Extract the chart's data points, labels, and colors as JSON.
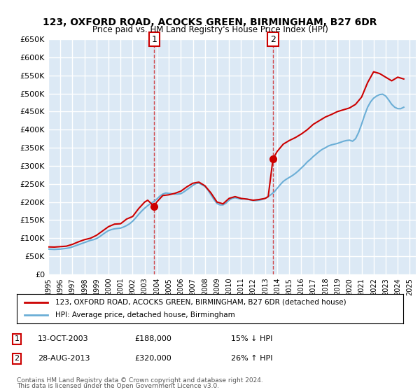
{
  "title": "123, OXFORD ROAD, ACOCKS GREEN, BIRMINGHAM, B27 6DR",
  "subtitle": "Price paid vs. HM Land Registry's House Price Index (HPI)",
  "ylabel_ticks": [
    "£0",
    "£50K",
    "£100K",
    "£150K",
    "£200K",
    "£250K",
    "£300K",
    "£350K",
    "£400K",
    "£450K",
    "£500K",
    "£550K",
    "£600K",
    "£650K"
  ],
  "ylim": [
    0,
    650000
  ],
  "xlim_start": 1995.0,
  "xlim_end": 2025.5,
  "background_color": "#ffffff",
  "plot_bg_color": "#dce9f5",
  "grid_color": "#ffffff",
  "sale1_x": 2003.79,
  "sale1_y": 188000,
  "sale2_x": 2013.65,
  "sale2_y": 320000,
  "sale_color": "#cc0000",
  "hpi_color": "#6baed6",
  "legend_label_red": "123, OXFORD ROAD, ACOCKS GREEN, BIRMINGHAM, B27 6DR (detached house)",
  "legend_label_blue": "HPI: Average price, detached house, Birmingham",
  "annotation1_label": "1",
  "annotation2_label": "2",
  "table_row1": [
    "1",
    "13-OCT-2003",
    "£188,000",
    "15% ↓ HPI"
  ],
  "table_row2": [
    "2",
    "28-AUG-2013",
    "£320,000",
    "26% ↑ HPI"
  ],
  "footer1": "Contains HM Land Registry data © Crown copyright and database right 2024.",
  "footer2": "This data is licensed under the Open Government Licence v3.0.",
  "hpi_data_x": [
    1995.0,
    1995.25,
    1995.5,
    1995.75,
    1996.0,
    1996.25,
    1996.5,
    1996.75,
    1997.0,
    1997.25,
    1997.5,
    1997.75,
    1998.0,
    1998.25,
    1998.5,
    1998.75,
    1999.0,
    1999.25,
    1999.5,
    1999.75,
    2000.0,
    2000.25,
    2000.5,
    2000.75,
    2001.0,
    2001.25,
    2001.5,
    2001.75,
    2002.0,
    2002.25,
    2002.5,
    2002.75,
    2003.0,
    2003.25,
    2003.5,
    2003.75,
    2004.0,
    2004.25,
    2004.5,
    2004.75,
    2005.0,
    2005.25,
    2005.5,
    2005.75,
    2006.0,
    2006.25,
    2006.5,
    2006.75,
    2007.0,
    2007.25,
    2007.5,
    2007.75,
    2008.0,
    2008.25,
    2008.5,
    2008.75,
    2009.0,
    2009.25,
    2009.5,
    2009.75,
    2010.0,
    2010.25,
    2010.5,
    2010.75,
    2011.0,
    2011.25,
    2011.5,
    2011.75,
    2012.0,
    2012.25,
    2012.5,
    2012.75,
    2013.0,
    2013.25,
    2013.5,
    2013.75,
    2014.0,
    2014.25,
    2014.5,
    2014.75,
    2015.0,
    2015.25,
    2015.5,
    2015.75,
    2016.0,
    2016.25,
    2016.5,
    2016.75,
    2017.0,
    2017.25,
    2017.5,
    2017.75,
    2018.0,
    2018.25,
    2018.5,
    2018.75,
    2019.0,
    2019.25,
    2019.5,
    2019.75,
    2020.0,
    2020.25,
    2020.5,
    2020.75,
    2021.0,
    2021.25,
    2021.5,
    2021.75,
    2022.0,
    2022.25,
    2022.5,
    2022.75,
    2023.0,
    2023.25,
    2023.5,
    2023.75,
    2024.0,
    2024.25,
    2024.5
  ],
  "hpi_data_y": [
    70000,
    69500,
    69000,
    69500,
    70000,
    71000,
    72000,
    73500,
    76000,
    79000,
    82000,
    85000,
    88000,
    91000,
    94000,
    96000,
    99000,
    104000,
    110000,
    116000,
    121000,
    124000,
    126000,
    127000,
    128000,
    131000,
    135000,
    140000,
    147000,
    156000,
    166000,
    175000,
    183000,
    190000,
    196000,
    201000,
    208000,
    216000,
    222000,
    225000,
    224000,
    223000,
    222000,
    222000,
    223000,
    228000,
    234000,
    240000,
    246000,
    251000,
    252000,
    248000,
    243000,
    233000,
    220000,
    207000,
    196000,
    192000,
    192000,
    197000,
    205000,
    210000,
    212000,
    210000,
    208000,
    209000,
    208000,
    206000,
    204000,
    204000,
    205000,
    207000,
    210000,
    215000,
    221000,
    228000,
    238000,
    248000,
    257000,
    263000,
    268000,
    273000,
    279000,
    286000,
    294000,
    302000,
    311000,
    318000,
    326000,
    333000,
    340000,
    346000,
    350000,
    355000,
    358000,
    360000,
    362000,
    365000,
    368000,
    370000,
    371000,
    368000,
    375000,
    392000,
    415000,
    440000,
    462000,
    477000,
    487000,
    493000,
    497000,
    498000,
    493000,
    482000,
    470000,
    462000,
    458000,
    458000,
    462000
  ],
  "price_line_x": [
    1995.0,
    1995.5,
    1996.0,
    1996.5,
    1997.0,
    1997.5,
    1998.0,
    1998.5,
    1999.0,
    1999.5,
    2000.0,
    2000.5,
    2001.0,
    2001.5,
    2002.0,
    2002.5,
    2003.0,
    2003.25,
    2003.79,
    2004.0,
    2004.5,
    2005.0,
    2005.5,
    2006.0,
    2006.5,
    2007.0,
    2007.5,
    2008.0,
    2008.5,
    2009.0,
    2009.5,
    2010.0,
    2010.5,
    2011.0,
    2011.5,
    2012.0,
    2012.5,
    2013.0,
    2013.25,
    2013.65,
    2014.0,
    2014.5,
    2015.0,
    2015.5,
    2016.0,
    2016.5,
    2017.0,
    2017.5,
    2018.0,
    2018.5,
    2019.0,
    2019.5,
    2020.0,
    2020.5,
    2021.0,
    2021.5,
    2022.0,
    2022.5,
    2023.0,
    2023.5,
    2024.0,
    2024.5
  ],
  "price_line_y": [
    76000,
    75500,
    76800,
    78000,
    83000,
    90000,
    96000,
    100000,
    108000,
    120000,
    132000,
    139000,
    140000,
    153000,
    160000,
    182000,
    200000,
    205000,
    188000,
    200000,
    218000,
    220000,
    224000,
    230000,
    242000,
    252000,
    255000,
    245000,
    225000,
    200000,
    195000,
    210000,
    215000,
    210000,
    208000,
    205000,
    207000,
    210000,
    215000,
    320000,
    340000,
    360000,
    370000,
    378000,
    388000,
    400000,
    415000,
    425000,
    435000,
    442000,
    450000,
    455000,
    460000,
    470000,
    490000,
    530000,
    560000,
    555000,
    545000,
    535000,
    545000,
    540000
  ]
}
